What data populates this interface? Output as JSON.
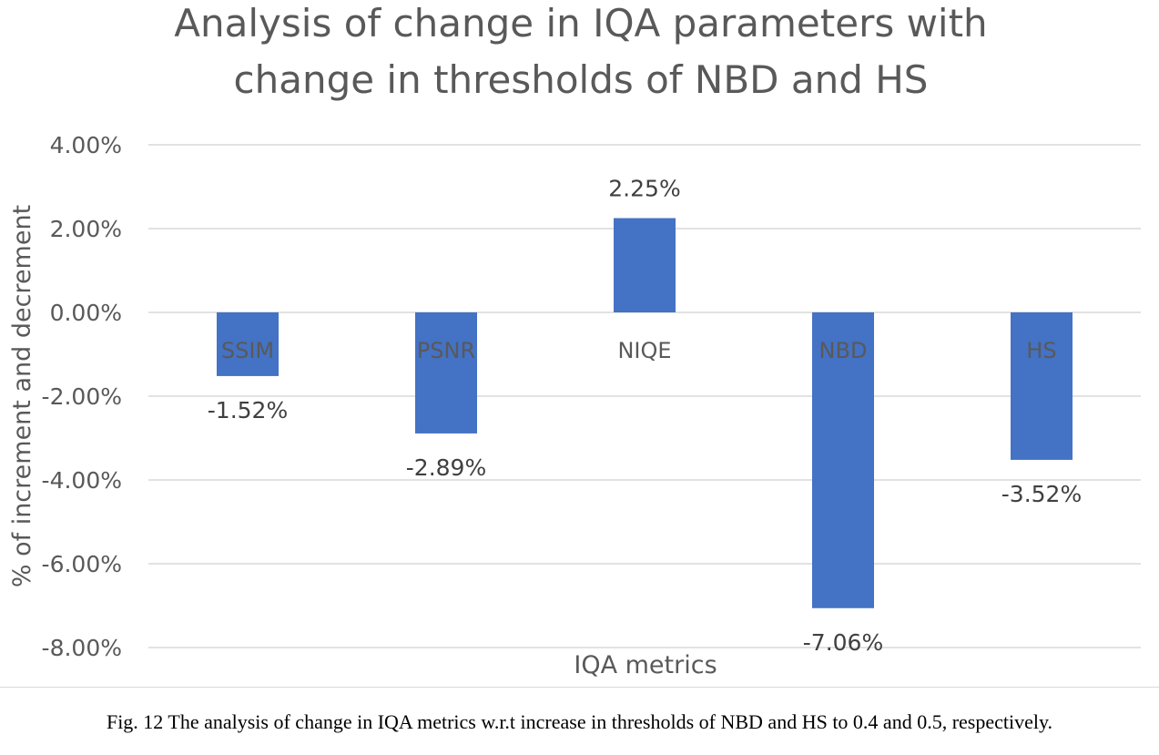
{
  "chart_data": {
    "type": "bar",
    "title_lines": [
      "Analysis of change in IQA parameters with",
      "change in thresholds of NBD and HS"
    ],
    "categories": [
      "SSIM",
      "PSNR",
      "NIQE",
      "NBD",
      "HS"
    ],
    "values": [
      -1.52,
      -2.89,
      2.25,
      -7.06,
      -3.52
    ],
    "data_labels": [
      "-1.52%",
      "-2.89%",
      "2.25%",
      "-7.06%",
      "-3.52%"
    ],
    "xlabel": "IQA metrics",
    "ylabel": "% of increment and decrement",
    "ylim": [
      -8,
      4
    ],
    "yticks": [
      4,
      2,
      0,
      -2,
      -4,
      -6,
      -8
    ],
    "ytick_labels": [
      "4.00%",
      "2.00%",
      "0.00%",
      "-2.00%",
      "-4.00%",
      "-6.00%",
      "-8.00%"
    ],
    "grid": true,
    "legend": "none",
    "bar_color": "#4472C4"
  },
  "caption": "Fig. 12 The analysis of change in IQA metrics w.r.t increase in thresholds of NBD and HS to 0.4 and 0.5, respectively."
}
